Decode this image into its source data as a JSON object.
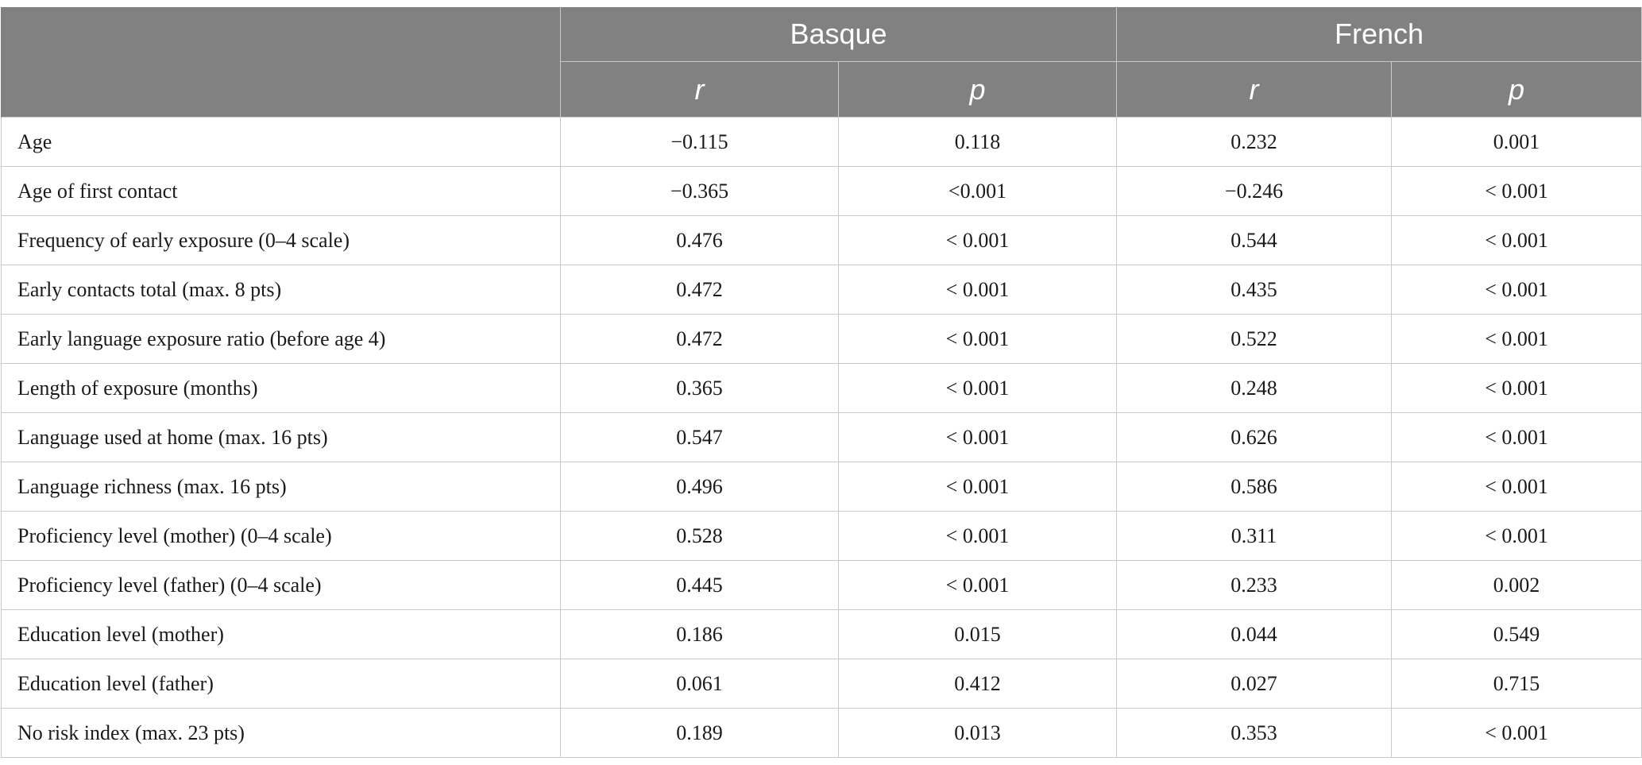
{
  "header": {
    "groups": [
      "Basque",
      "French"
    ],
    "subheaders": [
      "r",
      "p",
      "r",
      "p"
    ]
  },
  "rows": [
    {
      "label": "Age",
      "basque_r": "−0.115",
      "basque_p": "0.118",
      "french_r": "0.232",
      "french_p": "0.001"
    },
    {
      "label": "Age of first contact",
      "basque_r": "−0.365",
      "basque_p": "<0.001",
      "french_r": "−0.246",
      "french_p": "< 0.001"
    },
    {
      "label": "Frequency of early exposure (0–4 scale)",
      "basque_r": "0.476",
      "basque_p": "< 0.001",
      "french_r": "0.544",
      "french_p": "< 0.001"
    },
    {
      "label": "Early contacts total (max. 8 pts)",
      "basque_r": "0.472",
      "basque_p": "< 0.001",
      "french_r": "0.435",
      "french_p": "< 0.001"
    },
    {
      "label": "Early language exposure ratio (before age 4)",
      "basque_r": "0.472",
      "basque_p": "< 0.001",
      "french_r": "0.522",
      "french_p": "< 0.001"
    },
    {
      "label": "Length of exposure (months)",
      "basque_r": "0.365",
      "basque_p": "< 0.001",
      "french_r": "0.248",
      "french_p": "< 0.001"
    },
    {
      "label": "Language used at home (max. 16 pts)",
      "basque_r": "0.547",
      "basque_p": "< 0.001",
      "french_r": "0.626",
      "french_p": "< 0.001"
    },
    {
      "label": "Language richness (max. 16 pts)",
      "basque_r": "0.496",
      "basque_p": "< 0.001",
      "french_r": "0.586",
      "french_p": "< 0.001"
    },
    {
      "label": "Proficiency level (mother) (0–4 scale)",
      "basque_r": "0.528",
      "basque_p": "< 0.001",
      "french_r": "0.311",
      "french_p": "< 0.001"
    },
    {
      "label": "Proficiency level (father) (0–4 scale)",
      "basque_r": "0.445",
      "basque_p": "< 0.001",
      "french_r": "0.233",
      "french_p": "0.002"
    },
    {
      "label": "Education level (mother)",
      "basque_r": "0.186",
      "basque_p": "0.015",
      "french_r": "0.044",
      "french_p": "0.549"
    },
    {
      "label": "Education level (father)",
      "basque_r": "0.061",
      "basque_p": "0.412",
      "french_r": "0.027",
      "french_p": "0.715"
    },
    {
      "label": "No risk index (max. 23 pts)",
      "basque_r": "0.189",
      "basque_p": "0.013",
      "french_r": "0.353",
      "french_p": "< 0.001"
    }
  ]
}
